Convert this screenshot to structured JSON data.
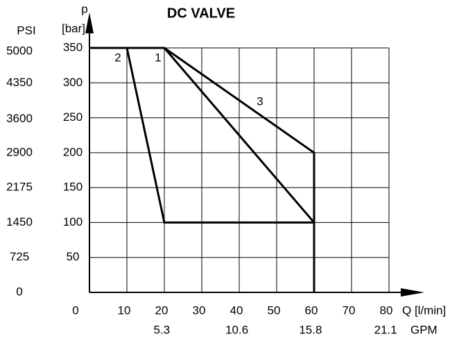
{
  "chart_data": {
    "type": "line",
    "title": "DC VALVE",
    "y_label_top": "p",
    "y_label": "[bar]",
    "y2_label": "PSI",
    "x_label": "Q [l/min]",
    "x2_label": "GPM",
    "xlim": [
      0,
      80
    ],
    "xticks": [
      0,
      10,
      20,
      30,
      40,
      50,
      60,
      70,
      80
    ],
    "ylim": [
      0,
      350
    ],
    "yticks": [
      0,
      50,
      100,
      150,
      200,
      250,
      300,
      350
    ],
    "y2lim": [
      0,
      5075
    ],
    "y2ticks": [
      0,
      725,
      1450,
      2175,
      2900,
      3600,
      4350,
      5000
    ],
    "x2lim": [
      0,
      21.14
    ],
    "x2ticks": [
      5.3,
      10.6,
      15.8,
      21.1
    ],
    "grid": true,
    "color": "#000000",
    "series": [
      {
        "name": "1",
        "x": [
          0,
          20,
          60,
          60
        ],
        "values": [
          350,
          350,
          100,
          0
        ]
      },
      {
        "name": "2",
        "x": [
          10,
          20,
          60
        ],
        "values": [
          350,
          100,
          100
        ]
      },
      {
        "name": "3",
        "x": [
          20,
          60,
          60
        ],
        "values": [
          350,
          200,
          0
        ]
      }
    ]
  }
}
